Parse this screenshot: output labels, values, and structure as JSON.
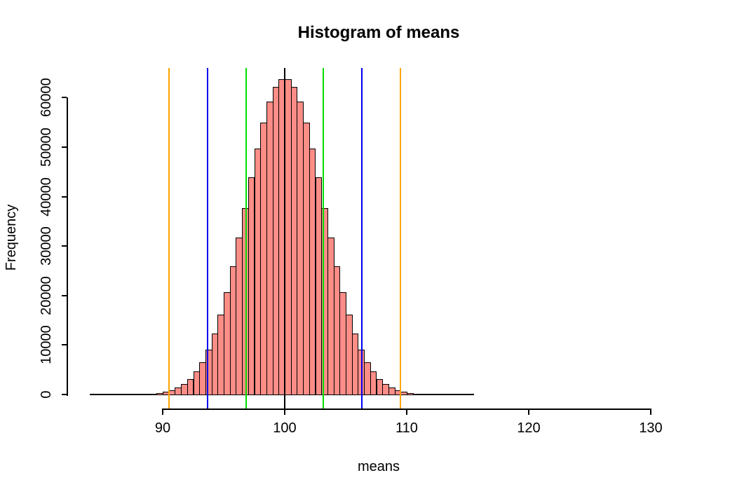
{
  "title": "Histogram of means",
  "xlabel": "means",
  "ylabel": "Frequency",
  "colors": {
    "background": "#FFFFFF",
    "bar_fill": "#FC8D87",
    "bar_border": "#000000",
    "axis": "#000000",
    "vline_mean": "#000000",
    "vline_green": "#00DF00",
    "vline_blue": "#0000EE",
    "vline_orange": "#FFA500"
  },
  "axes": {
    "x": {
      "tick_values": [
        90,
        100,
        110,
        120,
        130
      ],
      "tick_labels": [
        "90",
        "100",
        "110",
        "120",
        "130"
      ]
    },
    "y": {
      "tick_values": [
        0,
        10000,
        20000,
        30000,
        40000,
        50000,
        60000
      ],
      "tick_labels": [
        "0",
        "10000",
        "20000",
        "30000",
        "40000",
        "50000",
        "60000"
      ]
    }
  },
  "chart_data": {
    "type": "bar",
    "subtype": "histogram",
    "title": "Histogram of means",
    "xlabel": "means",
    "ylabel": "Frequency",
    "x_axis_ticks": [
      90,
      100,
      110,
      120,
      130
    ],
    "y_axis_ticks": [
      0,
      10000,
      20000,
      30000,
      40000,
      50000,
      60000
    ],
    "x_axis_range": [
      90,
      130
    ],
    "y_axis_range": [
      0,
      60000
    ],
    "grid": false,
    "legend": false,
    "bin_width": 0.5,
    "bin_starts": [
      84.0,
      84.5,
      85.0,
      85.5,
      86.0,
      86.5,
      87.0,
      87.5,
      88.0,
      88.5,
      89.0,
      89.5,
      90.0,
      90.5,
      91.0,
      91.5,
      92.0,
      92.5,
      93.0,
      93.5,
      94.0,
      94.5,
      95.0,
      95.5,
      96.0,
      96.5,
      97.0,
      97.5,
      98.0,
      98.5,
      99.0,
      99.5,
      100.0,
      100.5,
      101.0,
      101.5,
      102.0,
      102.5,
      103.0,
      103.5,
      104.0,
      104.5,
      105.0,
      105.5,
      106.0,
      106.5,
      107.0,
      107.5,
      108.0,
      108.5,
      109.0,
      109.5,
      110.0,
      110.5,
      111.0,
      111.5,
      112.0,
      112.5,
      113.0,
      113.5,
      114.0,
      114.5,
      115.0
    ],
    "counts": [
      0,
      1,
      1,
      3,
      5,
      10,
      19,
      35,
      64,
      114,
      197,
      335,
      553,
      888,
      1394,
      2133,
      3180,
      4616,
      6554,
      9075,
      12257,
      16133,
      20714,
      25938,
      31685,
      37744,
      43852,
      49689,
      54913,
      59192,
      62226,
      63800,
      63800,
      62226,
      59192,
      54913,
      49689,
      43852,
      37744,
      31685,
      25938,
      20714,
      16133,
      12257,
      9075,
      6554,
      4616,
      3180,
      2133,
      1394,
      888,
      553,
      335,
      197,
      114,
      64,
      35,
      19,
      10,
      5,
      3,
      1,
      0
    ],
    "vlines": [
      {
        "x": 100.0,
        "color_key": "vline_mean",
        "name": "vline-mean"
      },
      {
        "x": 96.84,
        "color_key": "vline_green",
        "name": "vline-green-left"
      },
      {
        "x": 103.16,
        "color_key": "vline_green",
        "name": "vline-green-right"
      },
      {
        "x": 93.68,
        "color_key": "vline_blue",
        "name": "vline-blue-left"
      },
      {
        "x": 106.32,
        "color_key": "vline_blue",
        "name": "vline-blue-right"
      },
      {
        "x": 90.51,
        "color_key": "vline_orange",
        "name": "vline-orange-left"
      },
      {
        "x": 109.49,
        "color_key": "vline_orange",
        "name": "vline-orange-right"
      }
    ]
  }
}
